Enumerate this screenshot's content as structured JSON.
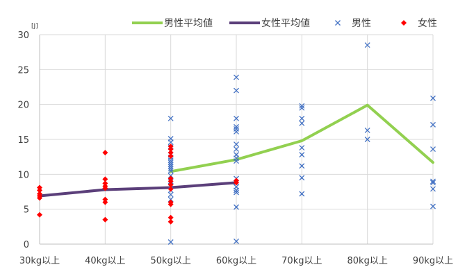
{
  "chart_data": {
    "type": "scatter",
    "unit_label": "[J]",
    "categories": [
      "30kg以上",
      "40kg以上",
      "50kg以上",
      "60kg以上",
      "70kg以上",
      "80kg以上",
      "90kg以上"
    ],
    "ylim": [
      0,
      30
    ],
    "yticks": [
      0,
      5,
      10,
      15,
      20,
      25,
      30
    ],
    "grid": true,
    "legend_position": "top-right",
    "colors": {
      "male_avg": "#92d050",
      "female_avg": "#5b3f7a",
      "male": "#4472c4",
      "female": "#ff0000",
      "grid": "#d9d9d9",
      "axis": "#bfbfbf"
    },
    "legend": [
      {
        "key": "male_avg",
        "label": "男性平均値",
        "marker": "line"
      },
      {
        "key": "female_avg",
        "label": "女性平均値",
        "marker": "line"
      },
      {
        "key": "male",
        "label": "男性",
        "marker": "x"
      },
      {
        "key": "female",
        "label": "女性",
        "marker": "diamond"
      }
    ],
    "series": [
      {
        "key": "male_avg",
        "type": "line",
        "x": [
          "50kg以上",
          "60kg以上",
          "70kg以上",
          "80kg以上",
          "90kg以上"
        ],
        "values": [
          10.4,
          12.1,
          14.8,
          19.9,
          11.7
        ]
      },
      {
        "key": "female_avg",
        "type": "line",
        "x": [
          "30kg以上",
          "40kg以上",
          "50kg以上",
          "60kg以上"
        ],
        "values": [
          6.9,
          7.8,
          8.1,
          8.8
        ]
      },
      {
        "key": "male",
        "type": "scatter",
        "points": [
          [
            "50kg以上",
            18.0
          ],
          [
            "50kg以上",
            15.1
          ],
          [
            "50kg以上",
            14.6
          ],
          [
            "50kg以上",
            13.9
          ],
          [
            "50kg以上",
            13.4
          ],
          [
            "50kg以上",
            12.8
          ],
          [
            "50kg以上",
            12.4
          ],
          [
            "50kg以上",
            12.0
          ],
          [
            "50kg以上",
            11.7
          ],
          [
            "50kg以上",
            11.4
          ],
          [
            "50kg以上",
            11.1
          ],
          [
            "50kg以上",
            10.8
          ],
          [
            "50kg以上",
            10.5
          ],
          [
            "50kg以上",
            9.8
          ],
          [
            "50kg以上",
            9.0
          ],
          [
            "50kg以上",
            8.3
          ],
          [
            "50kg以上",
            7.7
          ],
          [
            "50kg以上",
            7.1
          ],
          [
            "50kg以上",
            6.4
          ],
          [
            "50kg以上",
            0.3
          ],
          [
            "60kg以上",
            23.9
          ],
          [
            "60kg以上",
            22.0
          ],
          [
            "60kg以上",
            18.0
          ],
          [
            "60kg以上",
            16.8
          ],
          [
            "60kg以上",
            16.5
          ],
          [
            "60kg以上",
            16.1
          ],
          [
            "60kg以上",
            14.3
          ],
          [
            "60kg以上",
            13.6
          ],
          [
            "60kg以上",
            12.8
          ],
          [
            "60kg以上",
            12.3
          ],
          [
            "60kg以上",
            11.9
          ],
          [
            "60kg以上",
            9.4
          ],
          [
            "60kg以上",
            8.8
          ],
          [
            "60kg以上",
            8.2
          ],
          [
            "60kg以上",
            7.7
          ],
          [
            "60kg以上",
            7.4
          ],
          [
            "60kg以上",
            5.3
          ],
          [
            "60kg以上",
            0.4
          ],
          [
            "70kg以上",
            19.8
          ],
          [
            "70kg以上",
            19.5
          ],
          [
            "70kg以上",
            18.0
          ],
          [
            "70kg以上",
            17.3
          ],
          [
            "70kg以上",
            13.8
          ],
          [
            "70kg以上",
            12.8
          ],
          [
            "70kg以上",
            11.2
          ],
          [
            "70kg以上",
            9.5
          ],
          [
            "70kg以上",
            7.2
          ],
          [
            "80kg以上",
            28.5
          ],
          [
            "80kg以上",
            16.3
          ],
          [
            "80kg以上",
            15.0
          ],
          [
            "90kg以上",
            20.9
          ],
          [
            "90kg以上",
            17.1
          ],
          [
            "90kg以上",
            13.6
          ],
          [
            "90kg以上",
            9.0
          ],
          [
            "90kg以上",
            8.8
          ],
          [
            "90kg以上",
            7.9
          ],
          [
            "90kg以上",
            5.4
          ]
        ]
      },
      {
        "key": "female",
        "type": "scatter",
        "points": [
          [
            "30kg以上",
            8.1
          ],
          [
            "30kg以上",
            7.7
          ],
          [
            "30kg以上",
            7.2
          ],
          [
            "30kg以上",
            6.9
          ],
          [
            "30kg以上",
            6.6
          ],
          [
            "30kg以上",
            4.2
          ],
          [
            "40kg以上",
            13.1
          ],
          [
            "40kg以上",
            9.3
          ],
          [
            "40kg以上",
            8.7
          ],
          [
            "40kg以上",
            8.3
          ],
          [
            "40kg以上",
            8.0
          ],
          [
            "40kg以上",
            6.4
          ],
          [
            "40kg以上",
            6.0
          ],
          [
            "40kg以上",
            3.5
          ],
          [
            "50kg以上",
            14.0
          ],
          [
            "50kg以上",
            13.6
          ],
          [
            "50kg以上",
            13.1
          ],
          [
            "50kg以上",
            12.6
          ],
          [
            "50kg以上",
            9.4
          ],
          [
            "50kg以上",
            9.0
          ],
          [
            "50kg以上",
            8.5
          ],
          [
            "50kg以上",
            7.9
          ],
          [
            "50kg以上",
            6.0
          ],
          [
            "50kg以上",
            5.7
          ],
          [
            "50kg以上",
            3.8
          ],
          [
            "50kg以上",
            3.2
          ],
          [
            "60kg以上",
            9.1
          ],
          [
            "60kg以上",
            8.8
          ]
        ]
      }
    ]
  }
}
